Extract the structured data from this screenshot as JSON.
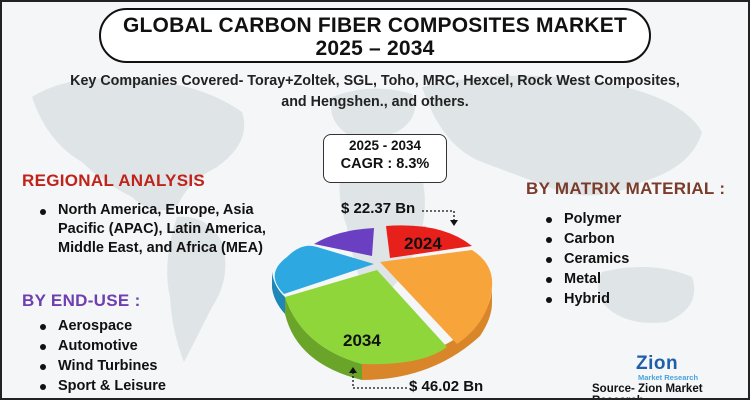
{
  "header": {
    "title_line1": "GLOBAL CARBON FIBER COMPOSITES MARKET",
    "title_line2": "2025 – 2034"
  },
  "key_companies": {
    "line1": "Key Companies Covered- Toray+Zoltek, SGL, Toho, MRC, Hexcel, Rock West Composites,",
    "line2": "and Hengshen., and others."
  },
  "cagr_box": {
    "period": "2025 - 2034",
    "cagr": "CAGR : 8.3%"
  },
  "regional": {
    "heading": "REGIONAL ANALYSIS",
    "items": [
      "North America, Europe, Asia Pacific (APAC), Latin America, Middle East, and Africa (MEA)"
    ]
  },
  "end_use": {
    "heading": "BY END-USE :",
    "items": [
      "Aerospace",
      "Automotive",
      "Wind Turbines",
      "Sport & Leisure"
    ]
  },
  "matrix": {
    "heading": "BY MATRIX MATERIAL :",
    "items": [
      "Polymer",
      "Carbon",
      "Ceramics",
      "Metal",
      "Hybrid"
    ]
  },
  "pie": {
    "label_2024": "2024",
    "label_2034": "2034",
    "value_2024": "$ 22.37 Bn",
    "value_2034": "$ 46.02 Bn",
    "colors": [
      "#e8201c",
      "#f7a43a",
      "#8fd63a",
      "#2da8e0",
      "#6a3fc2"
    ]
  },
  "footer": {
    "source": "Source- Zion Market Research",
    "logo_main": "Zion",
    "logo_sub": "Market Research"
  },
  "colors": {
    "regional_heading": "#c0231a",
    "end_use_heading": "#6e3fb0",
    "matrix_heading": "#7a3b2b"
  }
}
